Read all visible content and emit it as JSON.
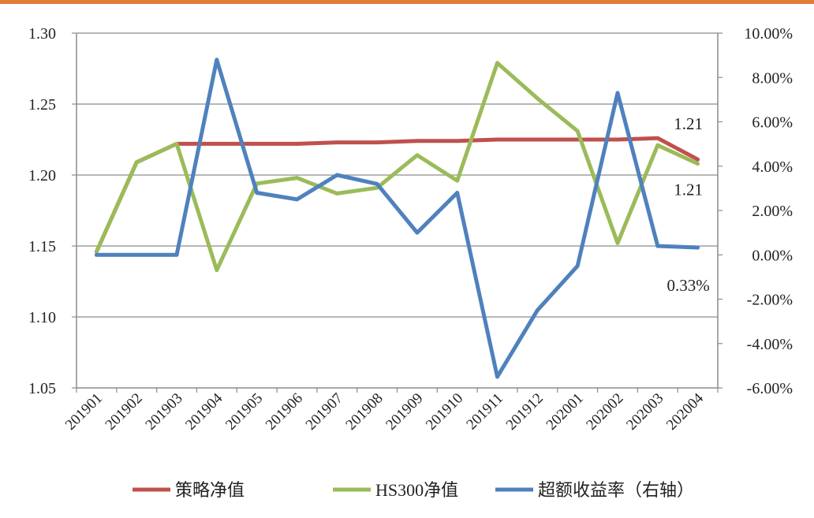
{
  "chart_data": {
    "type": "line",
    "categories": [
      "201901",
      "201902",
      "201903",
      "201904",
      "201905",
      "201906",
      "201907",
      "201908",
      "201909",
      "201910",
      "201911",
      "201912",
      "202001",
      "202002",
      "202003",
      "202004"
    ],
    "y_left": {
      "min": 1.05,
      "max": 1.3,
      "ticks": [
        1.05,
        1.1,
        1.15,
        1.2,
        1.25,
        1.3
      ],
      "tick_labels": [
        "1.05",
        "1.10",
        "1.15",
        "1.20",
        "1.25",
        "1.30"
      ]
    },
    "y_right": {
      "min": -6,
      "max": 10,
      "unit": "%",
      "ticks": [
        -6,
        -4,
        -2,
        0,
        2,
        4,
        6,
        8,
        10
      ],
      "tick_labels": [
        "-6.00%",
        "-4.00%",
        "-2.00%",
        "0.00%",
        "2.00%",
        "4.00%",
        "6.00%",
        "8.00%",
        "10.00%"
      ]
    },
    "series": [
      {
        "name": "策略净值",
        "axis": "left",
        "color": "#C0504D",
        "values": [
          1.146,
          1.209,
          1.222,
          1.222,
          1.222,
          1.222,
          1.223,
          1.223,
          1.224,
          1.224,
          1.225,
          1.225,
          1.225,
          1.225,
          1.226,
          1.211
        ]
      },
      {
        "name": "HS300净值",
        "axis": "left",
        "color": "#9BBB59",
        "values": [
          1.146,
          1.209,
          1.222,
          1.133,
          1.194,
          1.198,
          1.187,
          1.191,
          1.214,
          1.196,
          1.279,
          1.254,
          1.231,
          1.152,
          1.221,
          1.208
        ]
      },
      {
        "name": "超额收益率（右轴）",
        "axis": "right",
        "color": "#4F81BD",
        "values": [
          0.0,
          0.0,
          0.0,
          8.8,
          2.8,
          2.5,
          3.6,
          3.2,
          1.0,
          2.8,
          -5.5,
          -2.5,
          -0.5,
          7.3,
          0.4,
          0.33
        ]
      }
    ],
    "annotations": [
      {
        "text": "1.21",
        "series": "策略净值",
        "index": 15
      },
      {
        "text": "1.21",
        "series": "HS300净值",
        "index": 15
      },
      {
        "text": "0.33%",
        "series": "超额收益率（右轴）",
        "index": 15
      }
    ],
    "legend_position": "bottom",
    "grid": "horizontal",
    "accent_color": "#E07B39"
  }
}
